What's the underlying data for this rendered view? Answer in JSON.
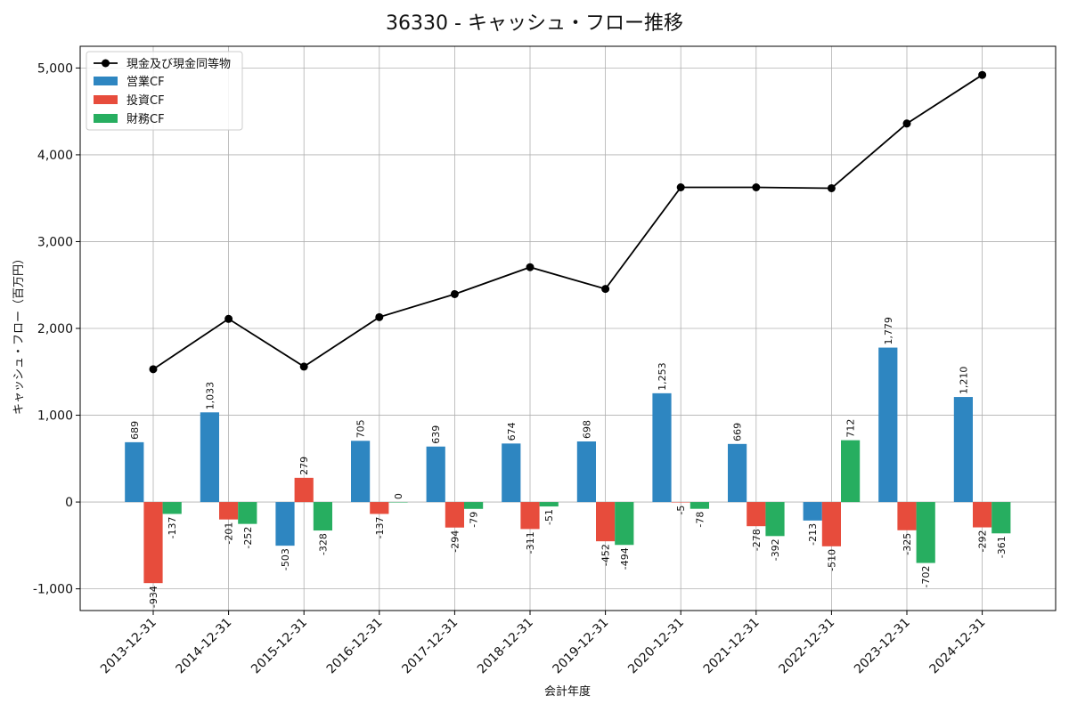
{
  "chart_data": {
    "type": "bar",
    "title": "36330 - キャッシュ・フロー推移",
    "xlabel": "会計年度",
    "ylabel": "キャッシュ・フロー（百万円）",
    "categories": [
      "2013-12-31",
      "2014-12-31",
      "2015-12-31",
      "2016-12-31",
      "2017-12-31",
      "2018-12-31",
      "2019-12-31",
      "2020-12-31",
      "2021-12-31",
      "2022-12-31",
      "2023-12-31",
      "2024-12-31"
    ],
    "ylim": [
      -1250,
      5250
    ],
    "yticks": [
      -1000,
      0,
      1000,
      2000,
      3000,
      4000,
      5000
    ],
    "ytick_labels": [
      "-1,000",
      "0",
      "1,000",
      "2,000",
      "3,000",
      "4,000",
      "5,000"
    ],
    "grid": true,
    "legend_position": "top-left",
    "series": [
      {
        "name": "営業CF",
        "kind": "bar",
        "color": "#2e86c1",
        "values": [
          689,
          1033,
          -503,
          705,
          639,
          674,
          698,
          1253,
          669,
          -213,
          1779,
          1210
        ],
        "labels": [
          "689",
          "1,033",
          "-503",
          "705",
          "639",
          "674",
          "698",
          "1,253",
          "669",
          "-213",
          "1,779",
          "1,210"
        ]
      },
      {
        "name": "投資CF",
        "kind": "bar",
        "color": "#e74c3c",
        "values": [
          -934,
          -201,
          279,
          -137,
          -294,
          -311,
          -452,
          -5,
          -278,
          -510,
          -325,
          -292
        ],
        "labels": [
          "-934",
          "-201",
          "279",
          "-137",
          "-294",
          "-311",
          "-452",
          "-5",
          "-278",
          "-510",
          "-325",
          "-292"
        ]
      },
      {
        "name": "財務CF",
        "kind": "bar",
        "color": "#27ae60",
        "values": [
          -137,
          -252,
          -328,
          0,
          -79,
          -51,
          -494,
          -78,
          -392,
          712,
          -702,
          -361
        ],
        "labels": [
          "-137",
          "-252",
          "-328",
          "0",
          "-79",
          "-51",
          "-494",
          "-78",
          "-392",
          "712",
          "-702",
          "-361"
        ]
      },
      {
        "name": "現金及び現金同等物",
        "kind": "line",
        "color": "#000000",
        "values": [
          1530,
          2110,
          1560,
          2130,
          2395,
          2705,
          2455,
          3625,
          3625,
          3615,
          4360,
          4920
        ]
      }
    ]
  }
}
